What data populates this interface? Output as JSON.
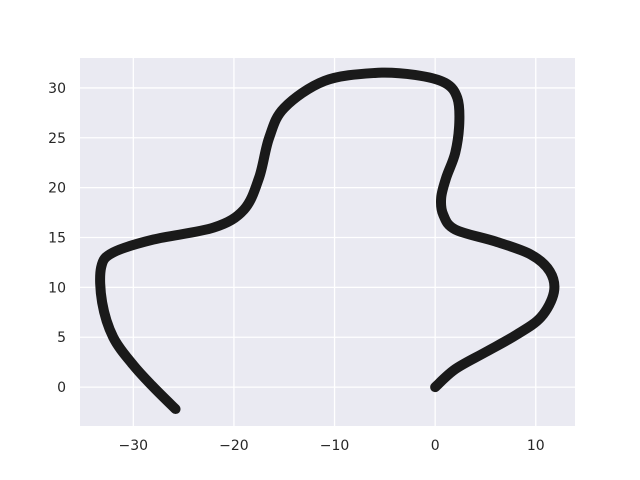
{
  "chart_data": {
    "type": "line",
    "title": "",
    "xlabel": "",
    "ylabel": "",
    "xlim": [
      -35.3,
      13.9
    ],
    "ylim": [
      -3.9,
      33.0
    ],
    "grid": true,
    "background_color": "#EAEAF2",
    "grid_color": "#FFFFFF",
    "line_color": "#1A1A1A",
    "x_ticks": [
      {
        "value": -30,
        "label": "−30"
      },
      {
        "value": -20,
        "label": "−20"
      },
      {
        "value": -10,
        "label": "−10"
      },
      {
        "value": 0,
        "label": "0"
      },
      {
        "value": 10,
        "label": "10"
      }
    ],
    "y_ticks": [
      {
        "value": 0,
        "label": "0"
      },
      {
        "value": 5,
        "label": "5"
      },
      {
        "value": 10,
        "label": "10"
      },
      {
        "value": 15,
        "label": "15"
      },
      {
        "value": 20,
        "label": "20"
      },
      {
        "value": 25,
        "label": "25"
      },
      {
        "value": 30,
        "label": "30"
      }
    ],
    "series": [
      {
        "x": [
          0,
          2,
          5,
          8,
          10.5,
          11.8,
          11.4,
          9.5,
          6,
          2,
          0.8,
          0.6,
          1.1,
          2,
          2.4,
          2.2,
          1,
          -2,
          -6,
          -11,
          -15,
          -16.5,
          -17.5,
          -19,
          -22,
          -28,
          -32,
          -33.2,
          -33.1,
          -32,
          -30,
          -28,
          -25.8
        ],
        "y": [
          0,
          1.8,
          3.5,
          5.2,
          7,
          9.5,
          11.6,
          13.3,
          14.6,
          15.8,
          17.3,
          19,
          21,
          23.5,
          26.5,
          29,
          30.5,
          31.3,
          31.5,
          30.7,
          28,
          25,
          21,
          17.8,
          16,
          14.8,
          13.5,
          12,
          8.5,
          5,
          2.2,
          0,
          -2.2
        ]
      }
    ]
  }
}
